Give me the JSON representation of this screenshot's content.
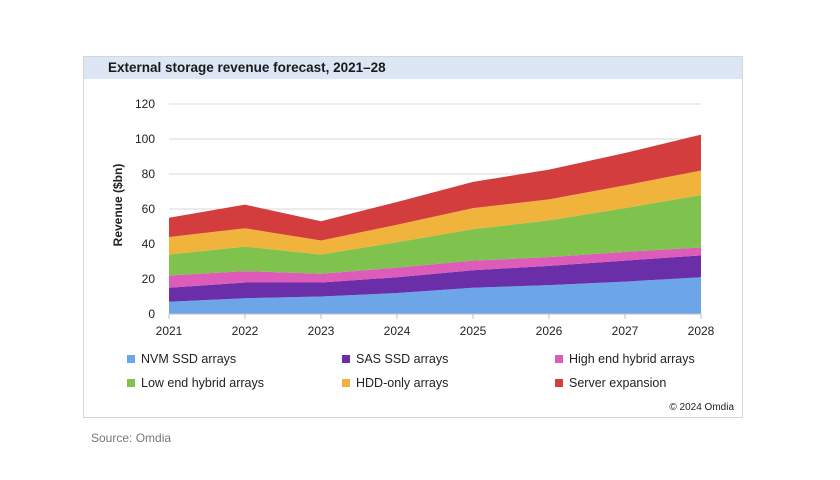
{
  "page": {
    "source": "Source: Omdia",
    "copyright": "© 2024 Omdia"
  },
  "chart_data": {
    "type": "area",
    "stacked": true,
    "title": "External storage revenue forecast, 2021–28",
    "xlabel": "",
    "ylabel": "Revenue ($bn)",
    "ylim": [
      0,
      120
    ],
    "yticks": [
      "0",
      "20",
      "40",
      "60",
      "80",
      "100",
      "120"
    ],
    "yticks_values": [
      0,
      20,
      40,
      60,
      80,
      100,
      120
    ],
    "x": [
      "2021",
      "2022",
      "2023",
      "2024",
      "2025",
      "2026",
      "2027",
      "2028"
    ],
    "legend_position": "bottom",
    "grid": true,
    "series": [
      {
        "name": "NVM SSD arrays",
        "color": "#6ca6e8",
        "values": [
          7,
          9,
          10,
          12,
          15,
          16.5,
          18.5,
          21
        ]
      },
      {
        "name": "SAS SSD arrays",
        "color": "#6a2ea8",
        "values": [
          8,
          9,
          8,
          9,
          10,
          11,
          12,
          12.5
        ]
      },
      {
        "name": "High end hybrid arrays",
        "color": "#dd5bb9",
        "values": [
          7,
          6.5,
          5,
          5.5,
          5.5,
          5,
          5,
          4.5
        ]
      },
      {
        "name": "Low end hybrid arrays",
        "color": "#7fc24e",
        "values": [
          12,
          14,
          11,
          14.5,
          18,
          21,
          25,
          30
        ]
      },
      {
        "name": "HDD-only arrays",
        "color": "#f0b43c",
        "values": [
          10,
          10.5,
          8,
          10,
          12,
          12,
          13,
          14
        ]
      },
      {
        "name": "Server expansion",
        "color": "#d43d3d",
        "values": [
          11,
          13.5,
          11,
          13,
          15,
          17,
          18.5,
          20.5
        ]
      }
    ]
  }
}
